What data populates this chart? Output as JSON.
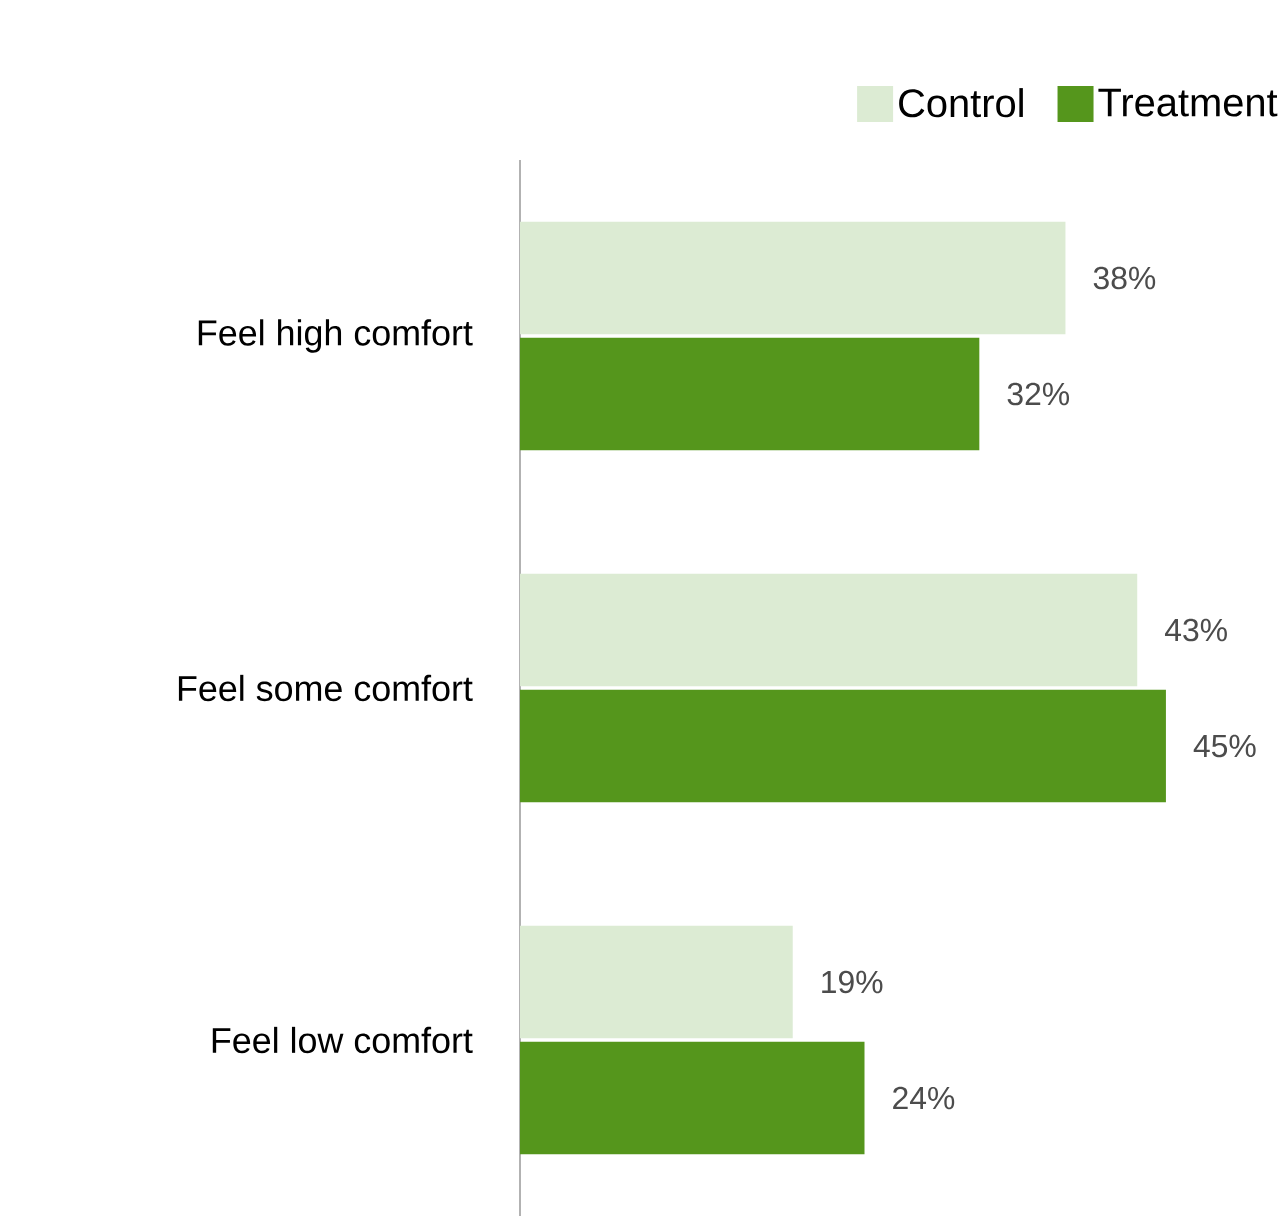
{
  "chart_data": {
    "type": "bar",
    "orientation": "horizontal",
    "categories": [
      "Feel high comfort",
      "Feel some comfort",
      "Feel low comfort"
    ],
    "series": [
      {
        "name": "Control",
        "color": "#dcebd3",
        "values": [
          38,
          43,
          19
        ],
        "value_labels": [
          "38%",
          "43%",
          "19%"
        ]
      },
      {
        "name": "Treatment",
        "color": "#55961c",
        "values": [
          32,
          45,
          24
        ],
        "value_labels": [
          "32%",
          "45%",
          "24%"
        ]
      }
    ],
    "tick_labels": "y",
    "legend": "top right"
  }
}
